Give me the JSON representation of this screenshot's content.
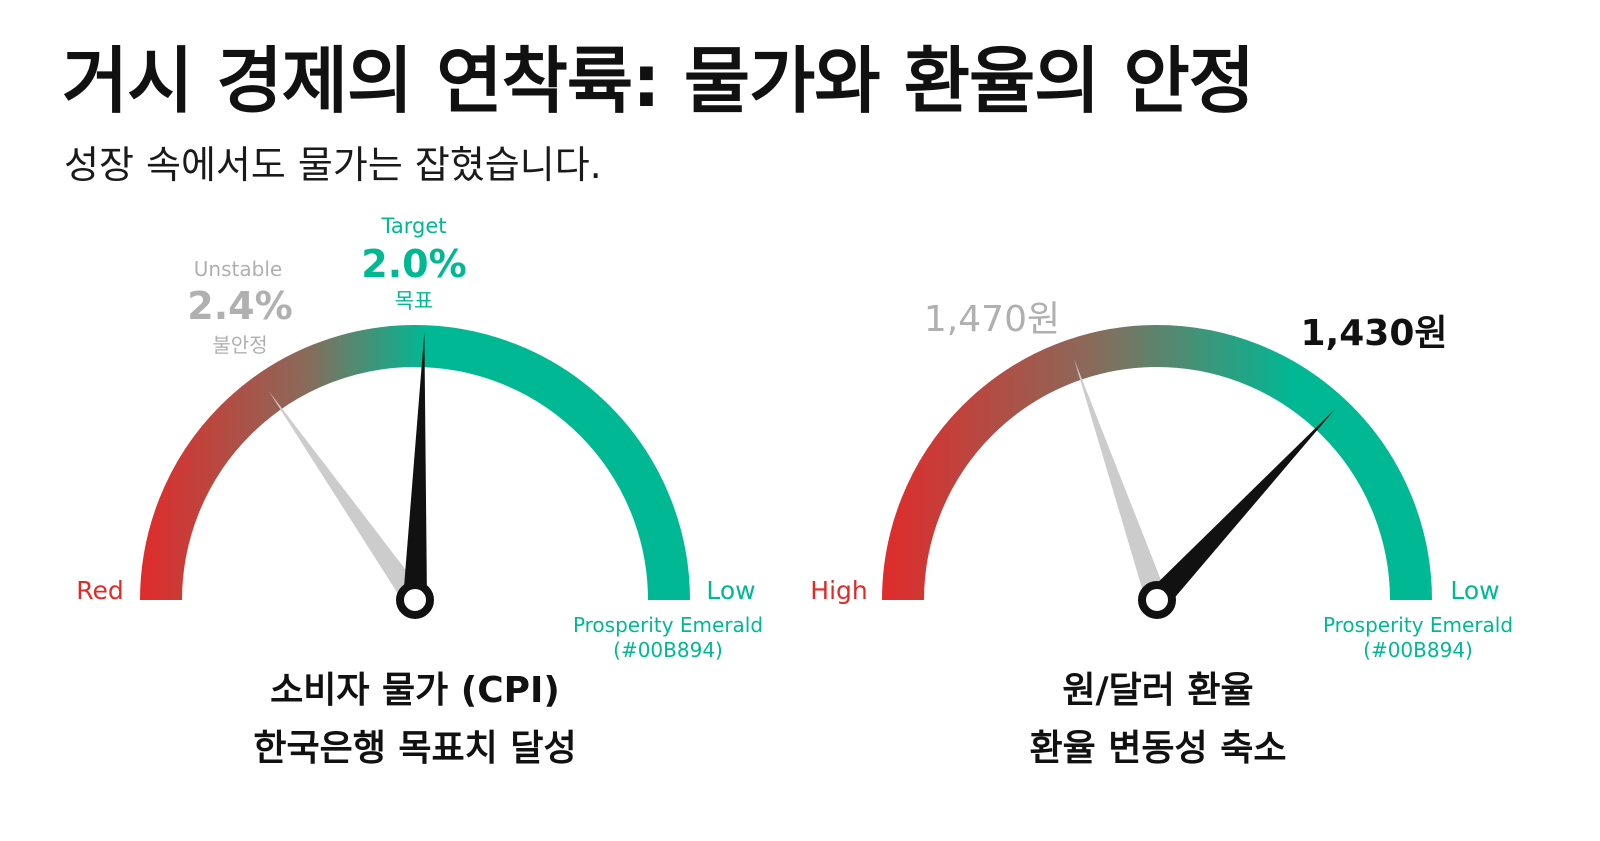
{
  "header": {
    "title": "거시 경제의 연착륙: 물가와 환율의 안정",
    "subtitle": "성장 속에서도 물가는 잡혔습니다."
  },
  "colors": {
    "emerald": "#00B894",
    "red": "#E02B2B",
    "muted_gray": "#AAAAAA",
    "needle_black": "#111111"
  },
  "chart_data": [
    {
      "type": "gauge",
      "needles": [
        {
          "role": "previous",
          "value_label": "2.4%",
          "top_label": "Unstable",
          "bottom_label": "불안정",
          "angle_deg": 125
        },
        {
          "role": "current",
          "value_label": "2.0%",
          "top_label": "Target",
          "bottom_label": "목표",
          "angle_deg": 88
        }
      ],
      "left_end_label": "Red",
      "right_end_label": "Low",
      "color_note": "Prosperity Emerald",
      "color_code": "(#00B894)",
      "caption_line1": "소비자 물가 (CPI)",
      "caption_line2": "한국은행 목표치 달성"
    },
    {
      "type": "gauge",
      "needles": [
        {
          "role": "previous",
          "value_label": "1,470원",
          "angle_deg": 109
        },
        {
          "role": "current",
          "value_label": "1,430원",
          "angle_deg": 47
        }
      ],
      "left_end_label": "High",
      "right_end_label": "Low",
      "color_note": "Prosperity Emerald",
      "color_code": "(#00B894)",
      "caption_line1": "원/달러 환율",
      "caption_line2": "환율 변동성 축소"
    }
  ]
}
